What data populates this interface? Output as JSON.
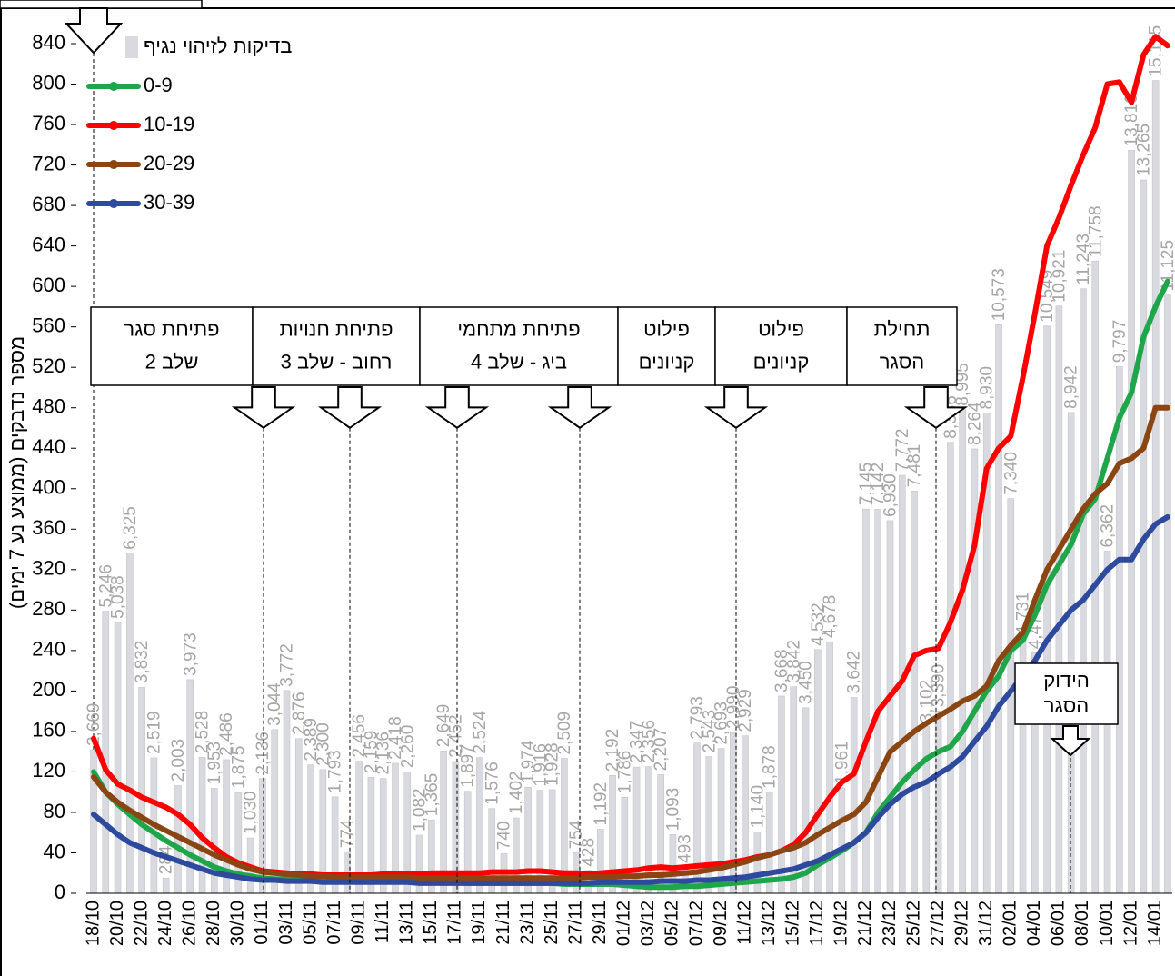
{
  "chart_data": {
    "type": "line",
    "y_axis_label": "מספר נדבקים (ממוצע נע 7 ימים)",
    "categories": [
      "18/10",
      null,
      "20/10",
      null,
      "22/10",
      null,
      "24/10",
      null,
      "26/10",
      null,
      "28/10",
      null,
      "30/10",
      null,
      "01/11",
      null,
      "03/11",
      null,
      "05/11",
      null,
      "07/11",
      null,
      "09/11",
      null,
      "11/11",
      null,
      "13/11",
      null,
      "15/11",
      null,
      "17/11",
      null,
      "19/11",
      null,
      "21/11",
      null,
      "23/11",
      null,
      "25/11",
      null,
      "27/11",
      null,
      "29/11",
      null,
      "01/12",
      null,
      "03/12",
      null,
      "05/12",
      null,
      "07/12",
      null,
      "09/12",
      null,
      "11/12",
      null,
      "13/12",
      null,
      "15/12",
      null,
      "17/12",
      null,
      "19/12",
      null,
      "21/12",
      null,
      "23/12",
      null,
      "25/12",
      null,
      "27/12",
      null,
      "29/12",
      null,
      "31/12",
      null,
      "02/01",
      null,
      "04/01",
      null,
      "06/01",
      null,
      "08/01",
      null,
      "10/01",
      null,
      "12/01",
      null,
      "14/01",
      null
    ],
    "ylim": [
      0,
      840
    ],
    "yticks": [
      0,
      40,
      80,
      120,
      160,
      200,
      240,
      280,
      320,
      360,
      400,
      440,
      480,
      520,
      560,
      600,
      640,
      680,
      720,
      760,
      800,
      840
    ],
    "y2lim": [
      0,
      15800
    ],
    "grid": false,
    "legend": "top-left",
    "series": [
      {
        "name": "בדיקות לזיהוי נגיף",
        "type": "bar",
        "axis": "y2",
        "color": "#d9dadf",
        "values": [
          2669,
          5246,
          5038,
          6325,
          3832,
          2519,
          284,
          2003,
          3973,
          2528,
          1953,
          2486,
          1875,
          1030,
          2136,
          3044,
          3772,
          2876,
          2389,
          2300,
          1793,
          774,
          2456,
          2159,
          2136,
          2418,
          2260,
          1082,
          1365,
          2649,
          2452,
          1897,
          2524,
          1576,
          740,
          1402,
          1974,
          1916,
          1928,
          2509,
          754,
          428,
          1192,
          2192,
          1786,
          2347,
          2356,
          2207,
          1093,
          493,
          2793,
          2543,
          2693,
          2990,
          2929,
          1140,
          1878,
          3668,
          3842,
          3450,
          4532,
          4678,
          1961,
          3642,
          7145,
          7142,
          6930,
          7772,
          7481,
          3102,
          3390,
          8386,
          8995,
          8264,
          8930,
          10573,
          7340,
          4731,
          4474,
          10549,
          10921,
          8942,
          11243,
          11758,
          6362,
          9797,
          13816,
          13265,
          15115,
          11125
        ],
        "value_labels": [
          "2,669",
          "5,246",
          "5,038",
          "6,325",
          "3,832",
          "2,519",
          "284",
          "2,003",
          "3,973",
          "2,528",
          "1,953",
          "2,486",
          "1,875",
          "1,030",
          "2,136",
          "3,044",
          "3,772",
          "2,876",
          "2,389",
          "2,300",
          "1,793",
          "774",
          "2,456",
          "2,159",
          "2,136",
          "2,418",
          "2,260",
          "1,082",
          "1,365",
          "2,649",
          "2,452",
          "1,897",
          "2,524",
          "1,576",
          "740",
          "1,402",
          "1,974",
          "1,916",
          "1,928",
          "2,509",
          "754",
          "428",
          "1,192",
          "2,192",
          "1,786",
          "2,347",
          "2,356",
          "2,207",
          "1,093",
          "493",
          "2,793",
          "2,543",
          "2,693",
          "2,990",
          "2,929",
          "1,140",
          "1,878",
          "3,668",
          "3,842",
          "3,450",
          "4,532",
          "4,678",
          "1,961",
          "3,642",
          "7,145",
          "7,142",
          "6,930",
          "7,772",
          "7,481",
          "3,102",
          "3,390",
          "8,386",
          "8,995",
          "8,264",
          "8,930",
          "10,573",
          "7,340",
          "4,731",
          "4,474",
          "10,549",
          "10,921",
          "8,942",
          "11,243",
          "11,758",
          "6,362",
          "9,797",
          "13,816",
          "13,265",
          "15,115",
          "11,125"
        ]
      },
      {
        "name": "0-9",
        "color": "#1fa64a",
        "values": [
          120,
          100,
          88,
          78,
          68,
          60,
          52,
          45,
          38,
          32,
          26,
          22,
          19,
          17,
          15,
          14,
          14,
          13,
          13,
          13,
          12,
          12,
          12,
          12,
          12,
          12,
          12,
          11,
          11,
          11,
          11,
          10,
          10,
          10,
          10,
          10,
          10,
          10,
          10,
          9,
          9,
          9,
          9,
          9,
          8,
          7,
          6,
          6,
          6,
          7,
          7,
          8,
          9,
          10,
          11,
          12,
          13,
          14,
          16,
          20,
          28,
          35,
          42,
          50,
          60,
          80,
          95,
          110,
          122,
          133,
          140,
          145,
          160,
          180,
          200,
          215,
          240,
          250,
          275,
          305,
          325,
          345,
          375,
          390,
          430,
          470,
          495,
          550,
          580,
          605
        ]
      },
      {
        "name": "10-19",
        "color": "#ff0000",
        "values": [
          153,
          122,
          108,
          102,
          95,
          90,
          85,
          78,
          68,
          55,
          45,
          36,
          30,
          26,
          22,
          21,
          20,
          19,
          19,
          18,
          18,
          18,
          18,
          18,
          19,
          19,
          19,
          19,
          20,
          20,
          20,
          20,
          20,
          21,
          21,
          21,
          22,
          22,
          21,
          20,
          20,
          19,
          20,
          21,
          22,
          23,
          25,
          26,
          25,
          26,
          27,
          28,
          29,
          31,
          33,
          36,
          38,
          42,
          48,
          60,
          78,
          95,
          110,
          118,
          150,
          180,
          195,
          210,
          235,
          240,
          242,
          268,
          300,
          344,
          420,
          440,
          452,
          510,
          573,
          640,
          668,
          700,
          730,
          757,
          800,
          802,
          782,
          829,
          847,
          838
        ]
      },
      {
        "name": "20-29",
        "color": "#8b4513",
        "values": [
          115,
          100,
          90,
          82,
          75,
          68,
          62,
          56,
          50,
          44,
          38,
          33,
          28,
          24,
          21,
          20,
          19,
          18,
          17,
          17,
          16,
          16,
          16,
          16,
          16,
          16,
          16,
          15,
          15,
          15,
          15,
          15,
          15,
          15,
          15,
          15,
          15,
          15,
          15,
          15,
          15,
          16,
          16,
          16,
          17,
          17,
          18,
          18,
          19,
          20,
          21,
          23,
          25,
          28,
          31,
          35,
          38,
          42,
          45,
          50,
          58,
          65,
          72,
          78,
          90,
          115,
          140,
          150,
          160,
          168,
          175,
          182,
          190,
          195,
          205,
          230,
          245,
          258,
          290,
          320,
          340,
          360,
          380,
          395,
          405,
          425,
          430,
          440,
          480,
          480
        ]
      },
      {
        "name": "30-39",
        "color": "#2e4a9e",
        "values": [
          78,
          68,
          58,
          50,
          45,
          40,
          36,
          32,
          28,
          24,
          20,
          18,
          16,
          14,
          13,
          13,
          12,
          12,
          12,
          11,
          11,
          11,
          11,
          11,
          11,
          11,
          11,
          10,
          10,
          10,
          10,
          10,
          10,
          10,
          10,
          10,
          10,
          10,
          10,
          10,
          10,
          10,
          11,
          11,
          11,
          11,
          11,
          12,
          12,
          12,
          13,
          13,
          14,
          15,
          16,
          18,
          20,
          22,
          24,
          28,
          32,
          38,
          44,
          50,
          60,
          75,
          88,
          98,
          105,
          110,
          118,
          125,
          135,
          150,
          165,
          185,
          200,
          215,
          230,
          250,
          265,
          280,
          290,
          305,
          320,
          330,
          330,
          350,
          365,
          372
        ]
      }
    ],
    "annotations": [
      {
        "lines": [
          "פתיחת סגר",
          "שלב 2"
        ]
      },
      {
        "lines": [
          "פתיחת חנויות",
          "רחוב - שלב 3"
        ]
      },
      {
        "lines": [
          "פתיחת מתחמי",
          "ביג - שלב 4"
        ]
      },
      {
        "lines": [
          "פילוט",
          "קניונים"
        ]
      },
      {
        "lines": [
          "פילוט",
          "קניונים"
        ]
      },
      {
        "lines": [
          "תחילת",
          "הסגר"
        ]
      },
      {
        "lines": [
          "הידוק",
          "הסגר"
        ]
      }
    ]
  }
}
